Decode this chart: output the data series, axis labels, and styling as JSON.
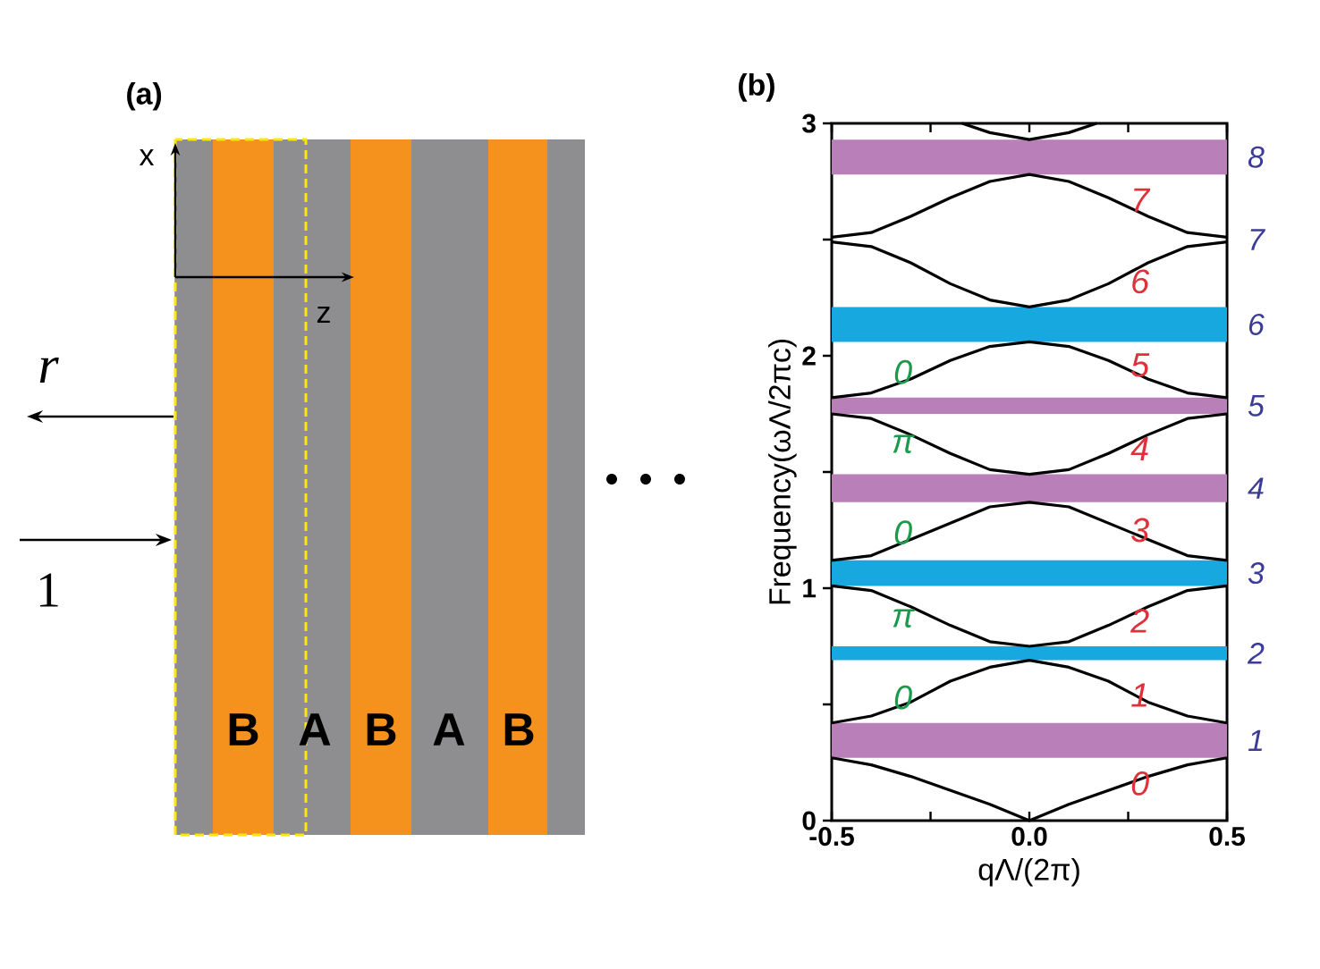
{
  "chart_data": [
    {
      "type": "other",
      "title": "(a)",
      "annotations": [
        "x",
        "z",
        "r",
        "1",
        "B",
        "A",
        "B",
        "A",
        "B"
      ]
    },
    {
      "type": "line",
      "title": "(b)",
      "xlabel": "qΛ/(2π)",
      "ylabel": "Frequency(ωΛ/2πc)",
      "xlim": [
        -0.5,
        0.5
      ],
      "ylim": [
        0,
        3
      ],
      "xticks": [
        -0.5,
        {
          "value": -0.25,
          "label": null
        },
        {
          "value": 0,
          "label": "0.0"
        },
        {
          "value": 0.25,
          "label": null
        },
        0.5
      ],
      "yticks": [
        0,
        {
          "value": 0.5,
          "label": null
        },
        1,
        {
          "value": 1.5,
          "label": null
        },
        2,
        {
          "value": 2.5,
          "label": null
        },
        3
      ],
      "series": [
        {
          "color": "#000000",
          "x": [
            -0.5,
            -0.4,
            -0.3,
            -0.2,
            -0.1,
            0,
            0.1,
            0.2,
            0.3,
            0.4,
            0.5
          ],
          "values": [
            0.27,
            0.24,
            0.19,
            0.13,
            0.07,
            0,
            0.07,
            0.13,
            0.19,
            0.24,
            0.27
          ]
        },
        {
          "color": "#000000",
          "x": [
            -0.5,
            -0.4,
            -0.3,
            -0.2,
            -0.1,
            0,
            0.1,
            0.2,
            0.3,
            0.4,
            0.5
          ],
          "values": [
            0.42,
            0.45,
            0.51,
            0.6,
            0.66,
            0.69,
            0.66,
            0.6,
            0.51,
            0.45,
            0.42
          ]
        },
        {
          "color": "#000000",
          "x": [
            -0.5,
            -0.4,
            -0.3,
            -0.2,
            -0.1,
            0,
            0.1,
            0.2,
            0.3,
            0.4,
            0.5
          ],
          "values": [
            1.01,
            0.99,
            0.92,
            0.84,
            0.77,
            0.75,
            0.77,
            0.84,
            0.92,
            0.99,
            1.01
          ]
        },
        {
          "color": "#000000",
          "x": [
            -0.5,
            -0.4,
            -0.3,
            -0.2,
            -0.1,
            0,
            0.1,
            0.2,
            0.3,
            0.4,
            0.5
          ],
          "values": [
            1.12,
            1.14,
            1.21,
            1.28,
            1.35,
            1.37,
            1.35,
            1.28,
            1.21,
            1.14,
            1.12
          ]
        },
        {
          "color": "#000000",
          "x": [
            -0.5,
            -0.4,
            -0.3,
            -0.2,
            -0.1,
            0,
            0.1,
            0.2,
            0.3,
            0.4,
            0.5
          ],
          "values": [
            1.75,
            1.73,
            1.66,
            1.58,
            1.51,
            1.49,
            1.51,
            1.58,
            1.66,
            1.73,
            1.75
          ]
        },
        {
          "color": "#000000",
          "x": [
            -0.5,
            -0.4,
            -0.3,
            -0.2,
            -0.1,
            0,
            0.1,
            0.2,
            0.3,
            0.4,
            0.5
          ],
          "values": [
            1.82,
            1.84,
            1.9,
            1.98,
            2.04,
            2.06,
            2.04,
            1.98,
            1.9,
            1.84,
            1.82
          ]
        },
        {
          "color": "#000000",
          "x": [
            -0.5,
            -0.4,
            -0.3,
            -0.2,
            -0.1,
            0,
            0.1,
            0.2,
            0.3,
            0.4,
            0.5
          ],
          "values": [
            2.49,
            2.47,
            2.4,
            2.31,
            2.24,
            2.21,
            2.24,
            2.31,
            2.4,
            2.47,
            2.49
          ]
        },
        {
          "color": "#000000",
          "x": [
            -0.5,
            -0.4,
            -0.3,
            -0.2,
            -0.1,
            0,
            0.1,
            0.2,
            0.3,
            0.4,
            0.5
          ],
          "values": [
            2.51,
            2.53,
            2.6,
            2.68,
            2.75,
            2.78,
            2.75,
            2.68,
            2.6,
            2.53,
            2.51
          ]
        },
        {
          "color": "#000000",
          "x": [
            -0.17,
            -0.1,
            0,
            0.1,
            0.17
          ],
          "values": [
            3,
            2.96,
            2.93,
            2.96,
            3
          ]
        }
      ],
      "bands": [
        {
          "axis": "y",
          "from": 0.27,
          "to": 0.42,
          "label": "1",
          "color": "#b97fb9"
        },
        {
          "axis": "y",
          "from": 0.69,
          "to": 0.75,
          "label": "2",
          "color": "#18a8e0"
        },
        {
          "axis": "y",
          "from": 1.01,
          "to": 1.12,
          "label": "3",
          "color": "#18a8e0"
        },
        {
          "axis": "y",
          "from": 1.37,
          "to": 1.49,
          "label": "4",
          "color": "#b97fb9"
        },
        {
          "axis": "y",
          "from": 1.75,
          "to": 1.82,
          "label": "5",
          "color": "#b97fb9"
        },
        {
          "axis": "y",
          "from": 2.06,
          "to": 2.21,
          "label": "6",
          "color": "#18a8e0"
        },
        {
          "axis": "y",
          "from": 2.78,
          "to": 2.93,
          "label": "8",
          "color": "#b97fb9"
        }
      ],
      "annotations": [
        {
          "text": "0",
          "x": 0.23,
          "y": 0.16
        },
        {
          "text": "1",
          "x": 0.23,
          "y": 0.54
        },
        {
          "text": "2",
          "x": 0.23,
          "y": 0.86
        },
        {
          "text": "3",
          "x": 0.23,
          "y": 1.25
        },
        {
          "text": "4",
          "x": 0.23,
          "y": 1.6
        },
        {
          "text": "5",
          "x": 0.23,
          "y": 1.96
        },
        {
          "text": "6",
          "x": 0.23,
          "y": 2.32
        },
        {
          "text": "7",
          "x": 0.23,
          "y": 2.67
        },
        {
          "text": "0",
          "x": -0.27,
          "y": 0.53
        },
        {
          "text": "π",
          "x": -0.27,
          "y": 0.87
        },
        {
          "text": "0",
          "x": -0.27,
          "y": 1.24
        },
        {
          "text": "π",
          "x": -0.27,
          "y": 1.62
        },
        {
          "text": "0",
          "x": -0.27,
          "y": 1.93
        },
        {
          "text": "7",
          "x": 0.5,
          "y": 2.5
        }
      ]
    }
  ]
}
